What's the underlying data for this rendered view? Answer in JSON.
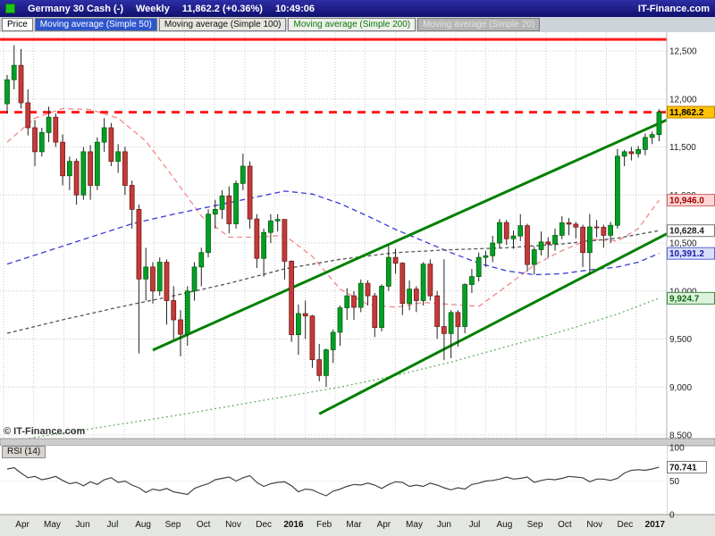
{
  "header": {
    "symbol": "Germany 30 Cash (-)",
    "timeframe": "Weekly",
    "last_price": "11,862.2",
    "change": "(+0.36%)",
    "time": "10:49:06",
    "brand": "IT-Finance.com"
  },
  "toolbar": {
    "tabs": [
      {
        "label": "Price",
        "style": "price"
      },
      {
        "label": "Moving average (Simple 50)",
        "style": "ma50"
      },
      {
        "label": "Moving average (Simple 100)",
        "style": "ma100"
      },
      {
        "label": "Moving average (Simple 200)",
        "style": "ma200"
      },
      {
        "label": "Moving average (Simple 20)",
        "style": "ma20"
      }
    ]
  },
  "watermark": "© IT-Finance.com",
  "rsi_label": "RSI (14)",
  "chart_data": {
    "type": "candlestick",
    "title": "Germany 30 Cash (-) Weekly",
    "interval": "weekly",
    "x_range": "Apr 2015 - Jan 2017",
    "ylim": [
      8453,
      12686
    ],
    "up_color": "#00A028",
    "down_color": "#C43A3A",
    "y_ticks": [
      {
        "value": 12500,
        "label": "12,500"
      },
      {
        "value": 12000,
        "label": "12,000"
      },
      {
        "value": 11500,
        "label": "11,500"
      },
      {
        "value": 11000,
        "label": "11,000"
      },
      {
        "value": 10500,
        "label": "10,500"
      },
      {
        "value": 10000,
        "label": "10,000"
      },
      {
        "value": 9500,
        "label": "9,500"
      },
      {
        "value": 9000,
        "label": "9,000"
      },
      {
        "value": 8500,
        "label": "8,500"
      }
    ],
    "months": [
      {
        "label": "Apr",
        "week": 0,
        "bold": false
      },
      {
        "label": "May",
        "week": 4.3,
        "bold": false
      },
      {
        "label": "Jun",
        "week": 8.7,
        "bold": false
      },
      {
        "label": "Jul",
        "week": 13,
        "bold": false
      },
      {
        "label": "Aug",
        "week": 17.4,
        "bold": false
      },
      {
        "label": "Sep",
        "week": 21.7,
        "bold": false
      },
      {
        "label": "Oct",
        "week": 26.1,
        "bold": false
      },
      {
        "label": "Nov",
        "week": 30.4,
        "bold": false
      },
      {
        "label": "Dec",
        "week": 34.8,
        "bold": false
      },
      {
        "label": "2016",
        "week": 39.1,
        "bold": true
      },
      {
        "label": "Feb",
        "week": 43.5,
        "bold": false
      },
      {
        "label": "Mar",
        "week": 47.8,
        "bold": false
      },
      {
        "label": "Apr",
        "week": 52.1,
        "bold": false
      },
      {
        "label": "May",
        "week": 56.5,
        "bold": false
      },
      {
        "label": "Jun",
        "week": 60.8,
        "bold": false
      },
      {
        "label": "Jul",
        "week": 65.2,
        "bold": false
      },
      {
        "label": "Aug",
        "week": 69.5,
        "bold": false
      },
      {
        "label": "Sep",
        "week": 73.9,
        "bold": false
      },
      {
        "label": "Oct",
        "week": 78.2,
        "bold": false
      },
      {
        "label": "Nov",
        "week": 82.5,
        "bold": false
      },
      {
        "label": "Dec",
        "week": 86.9,
        "bold": false
      },
      {
        "label": "2017",
        "week": 91.2,
        "bold": true
      }
    ],
    "candles": [
      [
        11950,
        12250,
        11850,
        12200
      ],
      [
        12200,
        12560,
        12100,
        12350
      ],
      [
        12350,
        12520,
        11900,
        11960
      ],
      [
        11960,
        12100,
        11620,
        11700
      ],
      [
        11700,
        11780,
        11300,
        11450
      ],
      [
        11450,
        11700,
        11400,
        11650
      ],
      [
        11650,
        11920,
        11550,
        11810
      ],
      [
        11810,
        11850,
        11500,
        11550
      ],
      [
        11550,
        11630,
        11100,
        11200
      ],
      [
        11200,
        11400,
        11050,
        11350
      ],
      [
        11350,
        11380,
        10900,
        11000
      ],
      [
        11000,
        11500,
        10950,
        11450
      ],
      [
        11450,
        11520,
        10950,
        11100
      ],
      [
        11100,
        11600,
        11050,
        11550
      ],
      [
        11550,
        11800,
        11450,
        11700
      ],
      [
        11700,
        11750,
        11300,
        11350
      ],
      [
        11350,
        11530,
        11230,
        11450
      ],
      [
        11450,
        11500,
        11000,
        11100
      ],
      [
        11100,
        11150,
        10650,
        10850
      ],
      [
        10850,
        10900,
        9350,
        10125
      ],
      [
        10125,
        10450,
        9900,
        10250
      ],
      [
        10250,
        10300,
        9870,
        10000
      ],
      [
        10000,
        10350,
        9950,
        10300
      ],
      [
        10300,
        10330,
        9650,
        9900
      ],
      [
        9900,
        10050,
        9500,
        9700
      ],
      [
        9700,
        9800,
        9320,
        9550
      ],
      [
        9550,
        10050,
        9430,
        10000
      ],
      [
        10000,
        10300,
        9900,
        10250
      ],
      [
        10250,
        10450,
        10050,
        10400
      ],
      [
        10400,
        10850,
        10350,
        10800
      ],
      [
        10800,
        10950,
        10650,
        10850
      ],
      [
        10850,
        11050,
        10750,
        10990
      ],
      [
        10990,
        11090,
        10600,
        10700
      ],
      [
        10700,
        11150,
        10650,
        11120
      ],
      [
        11120,
        11430,
        11050,
        11300
      ],
      [
        11300,
        11350,
        10650,
        10750
      ],
      [
        10750,
        10800,
        10240,
        10340
      ],
      [
        10340,
        10650,
        10150,
        10610
      ],
      [
        10610,
        10800,
        10500,
        10730
      ],
      [
        10730,
        10800,
        10620,
        10745
      ],
      [
        10745,
        10750,
        10120,
        10310
      ],
      [
        10310,
        10320,
        9470,
        9545
      ],
      [
        9545,
        9860,
        9335,
        9765
      ],
      [
        9765,
        9900,
        9500,
        9740
      ],
      [
        9740,
        9750,
        9200,
        9285
      ],
      [
        9285,
        9450,
        9060,
        9120
      ],
      [
        9120,
        9400,
        9000,
        9388
      ],
      [
        9388,
        9600,
        9250,
        9570
      ],
      [
        9570,
        9850,
        9430,
        9825
      ],
      [
        9825,
        10030,
        9700,
        9950
      ],
      [
        9950,
        10000,
        9700,
        9830
      ],
      [
        9830,
        10120,
        9780,
        10080
      ],
      [
        10080,
        10110,
        9850,
        9950
      ],
      [
        9950,
        9980,
        9520,
        9620
      ],
      [
        9620,
        10070,
        9580,
        10050
      ],
      [
        10050,
        10470,
        10000,
        10350
      ],
      [
        10350,
        10440,
        10180,
        10290
      ],
      [
        10290,
        10300,
        9750,
        9870
      ],
      [
        9870,
        10110,
        9800,
        10020
      ],
      [
        10020,
        10050,
        9780,
        9900
      ],
      [
        9900,
        10300,
        9850,
        10280
      ],
      [
        10280,
        10330,
        9900,
        9950
      ],
      [
        9950,
        10000,
        9500,
        9630
      ],
      [
        9630,
        10330,
        9280,
        9557
      ],
      [
        9557,
        9800,
        9300,
        9776
      ],
      [
        9776,
        9800,
        9420,
        9630
      ],
      [
        9630,
        10080,
        9560,
        10067
      ],
      [
        10067,
        10230,
        9980,
        10150
      ],
      [
        10150,
        10400,
        10100,
        10350
      ],
      [
        10350,
        10420,
        10250,
        10367
      ],
      [
        10367,
        10575,
        10300,
        10500
      ],
      [
        10500,
        10750,
        10450,
        10713
      ],
      [
        10713,
        10740,
        10480,
        10544
      ],
      [
        10544,
        10630,
        10440,
        10573
      ],
      [
        10573,
        10800,
        10520,
        10680
      ],
      [
        10680,
        10700,
        10200,
        10276
      ],
      [
        10276,
        10460,
        10170,
        10430
      ],
      [
        10430,
        10620,
        10370,
        10511
      ],
      [
        10511,
        10560,
        10350,
        10490
      ],
      [
        10490,
        10650,
        10420,
        10580
      ],
      [
        10580,
        10780,
        10540,
        10710
      ],
      [
        10710,
        10760,
        10580,
        10696
      ],
      [
        10696,
        10720,
        10550,
        10665
      ],
      [
        10665,
        10690,
        10250,
        10400
      ],
      [
        10400,
        10802,
        10174,
        10667
      ],
      [
        10667,
        10740,
        10560,
        10664
      ],
      [
        10664,
        10690,
        10450,
        10580
      ],
      [
        10580,
        10720,
        10500,
        10684
      ],
      [
        10684,
        11480,
        10650,
        11404
      ],
      [
        11404,
        11470,
        11300,
        11450
      ],
      [
        11450,
        11500,
        11360,
        11430
      ],
      [
        11430,
        11510,
        11390,
        11473
      ],
      [
        11473,
        11640,
        11415,
        11599
      ],
      [
        11599,
        11660,
        11530,
        11629
      ],
      [
        11629,
        11893,
        11560,
        11862.2
      ]
    ],
    "moving_averages": [
      {
        "name": "Moving average Simple 20",
        "data_name": "sma-20",
        "color": "#ee8a8a",
        "dash": "6 4",
        "value": 10946.0,
        "badge": {
          "text": "10,946.0",
          "bg": "#ffd6d6",
          "fg": "#a00000",
          "border": "#cc6666"
        },
        "points": [
          [
            0,
            11550
          ],
          [
            4,
            11800
          ],
          [
            8,
            11900
          ],
          [
            12,
            11890
          ],
          [
            16,
            11800
          ],
          [
            20,
            11560
          ],
          [
            24,
            11180
          ],
          [
            28,
            10780
          ],
          [
            32,
            10560
          ],
          [
            36,
            10560
          ],
          [
            40,
            10580
          ],
          [
            44,
            10360
          ],
          [
            48,
            10020
          ],
          [
            52,
            9860
          ],
          [
            56,
            9830
          ],
          [
            60,
            9880
          ],
          [
            64,
            9860
          ],
          [
            68,
            9840
          ],
          [
            72,
            10050
          ],
          [
            76,
            10270
          ],
          [
            80,
            10420
          ],
          [
            84,
            10540
          ],
          [
            88,
            10520
          ],
          [
            91,
            10650
          ],
          [
            94,
            10946
          ]
        ]
      },
      {
        "name": "Moving average Simple 50",
        "data_name": "sma-50",
        "color": "#3a3ad6",
        "dash": "6 4",
        "value": 10391.2,
        "badge": {
          "text": "10,391.2",
          "bg": "#d9defa",
          "fg": "#1a1aa6",
          "border": "#5566cc"
        },
        "points": [
          [
            0,
            10280
          ],
          [
            6,
            10420
          ],
          [
            12,
            10560
          ],
          [
            18,
            10700
          ],
          [
            24,
            10800
          ],
          [
            30,
            10890
          ],
          [
            36,
            10980
          ],
          [
            40,
            11040
          ],
          [
            44,
            11010
          ],
          [
            48,
            10910
          ],
          [
            52,
            10780
          ],
          [
            56,
            10640
          ],
          [
            60,
            10520
          ],
          [
            64,
            10400
          ],
          [
            68,
            10290
          ],
          [
            72,
            10210
          ],
          [
            76,
            10170
          ],
          [
            80,
            10180
          ],
          [
            84,
            10220
          ],
          [
            88,
            10250
          ],
          [
            91,
            10300
          ],
          [
            94,
            10391.2
          ]
        ]
      },
      {
        "name": "Moving average Simple 100",
        "data_name": "sma-100",
        "color": "#555555",
        "dash": "4 3",
        "value": 10628.4,
        "badge": {
          "text": "10,628.4",
          "bg": "#ffffff",
          "fg": "#222222",
          "border": "#777777"
        },
        "points": [
          [
            0,
            9560
          ],
          [
            8,
            9700
          ],
          [
            16,
            9830
          ],
          [
            24,
            9950
          ],
          [
            32,
            10080
          ],
          [
            40,
            10230
          ],
          [
            48,
            10330
          ],
          [
            56,
            10400
          ],
          [
            64,
            10430
          ],
          [
            72,
            10450
          ],
          [
            80,
            10490
          ],
          [
            88,
            10550
          ],
          [
            94,
            10628.4
          ]
        ]
      },
      {
        "name": "Moving average Simple 200",
        "data_name": "sma-200",
        "color": "#67b067",
        "dash": "2 3",
        "value": 9924.7,
        "badge": {
          "text": "9,924.7",
          "bg": "#ddf2dd",
          "fg": "#0a6a0a",
          "border": "#3a8a3a"
        },
        "points": [
          [
            0,
            8430
          ],
          [
            8,
            8520
          ],
          [
            16,
            8610
          ],
          [
            24,
            8700
          ],
          [
            32,
            8800
          ],
          [
            40,
            8900
          ],
          [
            48,
            9000
          ],
          [
            56,
            9120
          ],
          [
            64,
            9260
          ],
          [
            72,
            9420
          ],
          [
            80,
            9580
          ],
          [
            88,
            9760
          ],
          [
            94,
            9924.7
          ]
        ]
      }
    ],
    "trendlines": [
      {
        "name": "ascending-channel-upper",
        "from": [
          21,
          9385
        ],
        "to": [
          96,
          11810
        ],
        "color": "#008000",
        "width": 3
      },
      {
        "name": "ascending-channel-lower",
        "from": [
          45,
          8720
        ],
        "to": [
          96,
          10630
        ],
        "color": "#008000",
        "width": 3
      }
    ],
    "h_lines": [
      {
        "name": "resistance-line",
        "value": 12620,
        "color": "#ff1a1a",
        "width": 3,
        "dash": null
      },
      {
        "name": "last-price-line",
        "value": 11862.2,
        "color": "#ff1a1a",
        "width": 3,
        "dash": "9 7",
        "badge": {
          "text": "11,862.2",
          "bg": "#ffc103",
          "fg": "#000000",
          "border": "#b8860b"
        }
      }
    ],
    "rsi": {
      "name": "RSI (14)",
      "range": [
        0,
        100
      ],
      "ticks": [
        {
          "value": 100,
          "label": "100"
        },
        {
          "value": 50,
          "label": "50"
        },
        {
          "value": 0,
          "label": "0"
        }
      ],
      "current": 70.741,
      "badge": {
        "text": "70.741",
        "bg": "#ffffff",
        "fg": "#111111",
        "border": "#777777"
      },
      "values": [
        68,
        70,
        62,
        55,
        57,
        52,
        54,
        57,
        51,
        46,
        48,
        43,
        49,
        45,
        52,
        55,
        48,
        50,
        44,
        40,
        33,
        38,
        36,
        39,
        34,
        32,
        30,
        39,
        43,
        46,
        52,
        54,
        56,
        50,
        55,
        58,
        48,
        42,
        46,
        48,
        49,
        43,
        34,
        38,
        37,
        32,
        28,
        35,
        38,
        42,
        45,
        44,
        47,
        44,
        39,
        45,
        49,
        48,
        42,
        44,
        42,
        47,
        44,
        40,
        37,
        40,
        38,
        45,
        47,
        50,
        51,
        53,
        56,
        53,
        54,
        56,
        48,
        51,
        53,
        52,
        54,
        57,
        56,
        55,
        49,
        53,
        53,
        51,
        54,
        62,
        66,
        67,
        66,
        68,
        70.741
      ]
    }
  }
}
